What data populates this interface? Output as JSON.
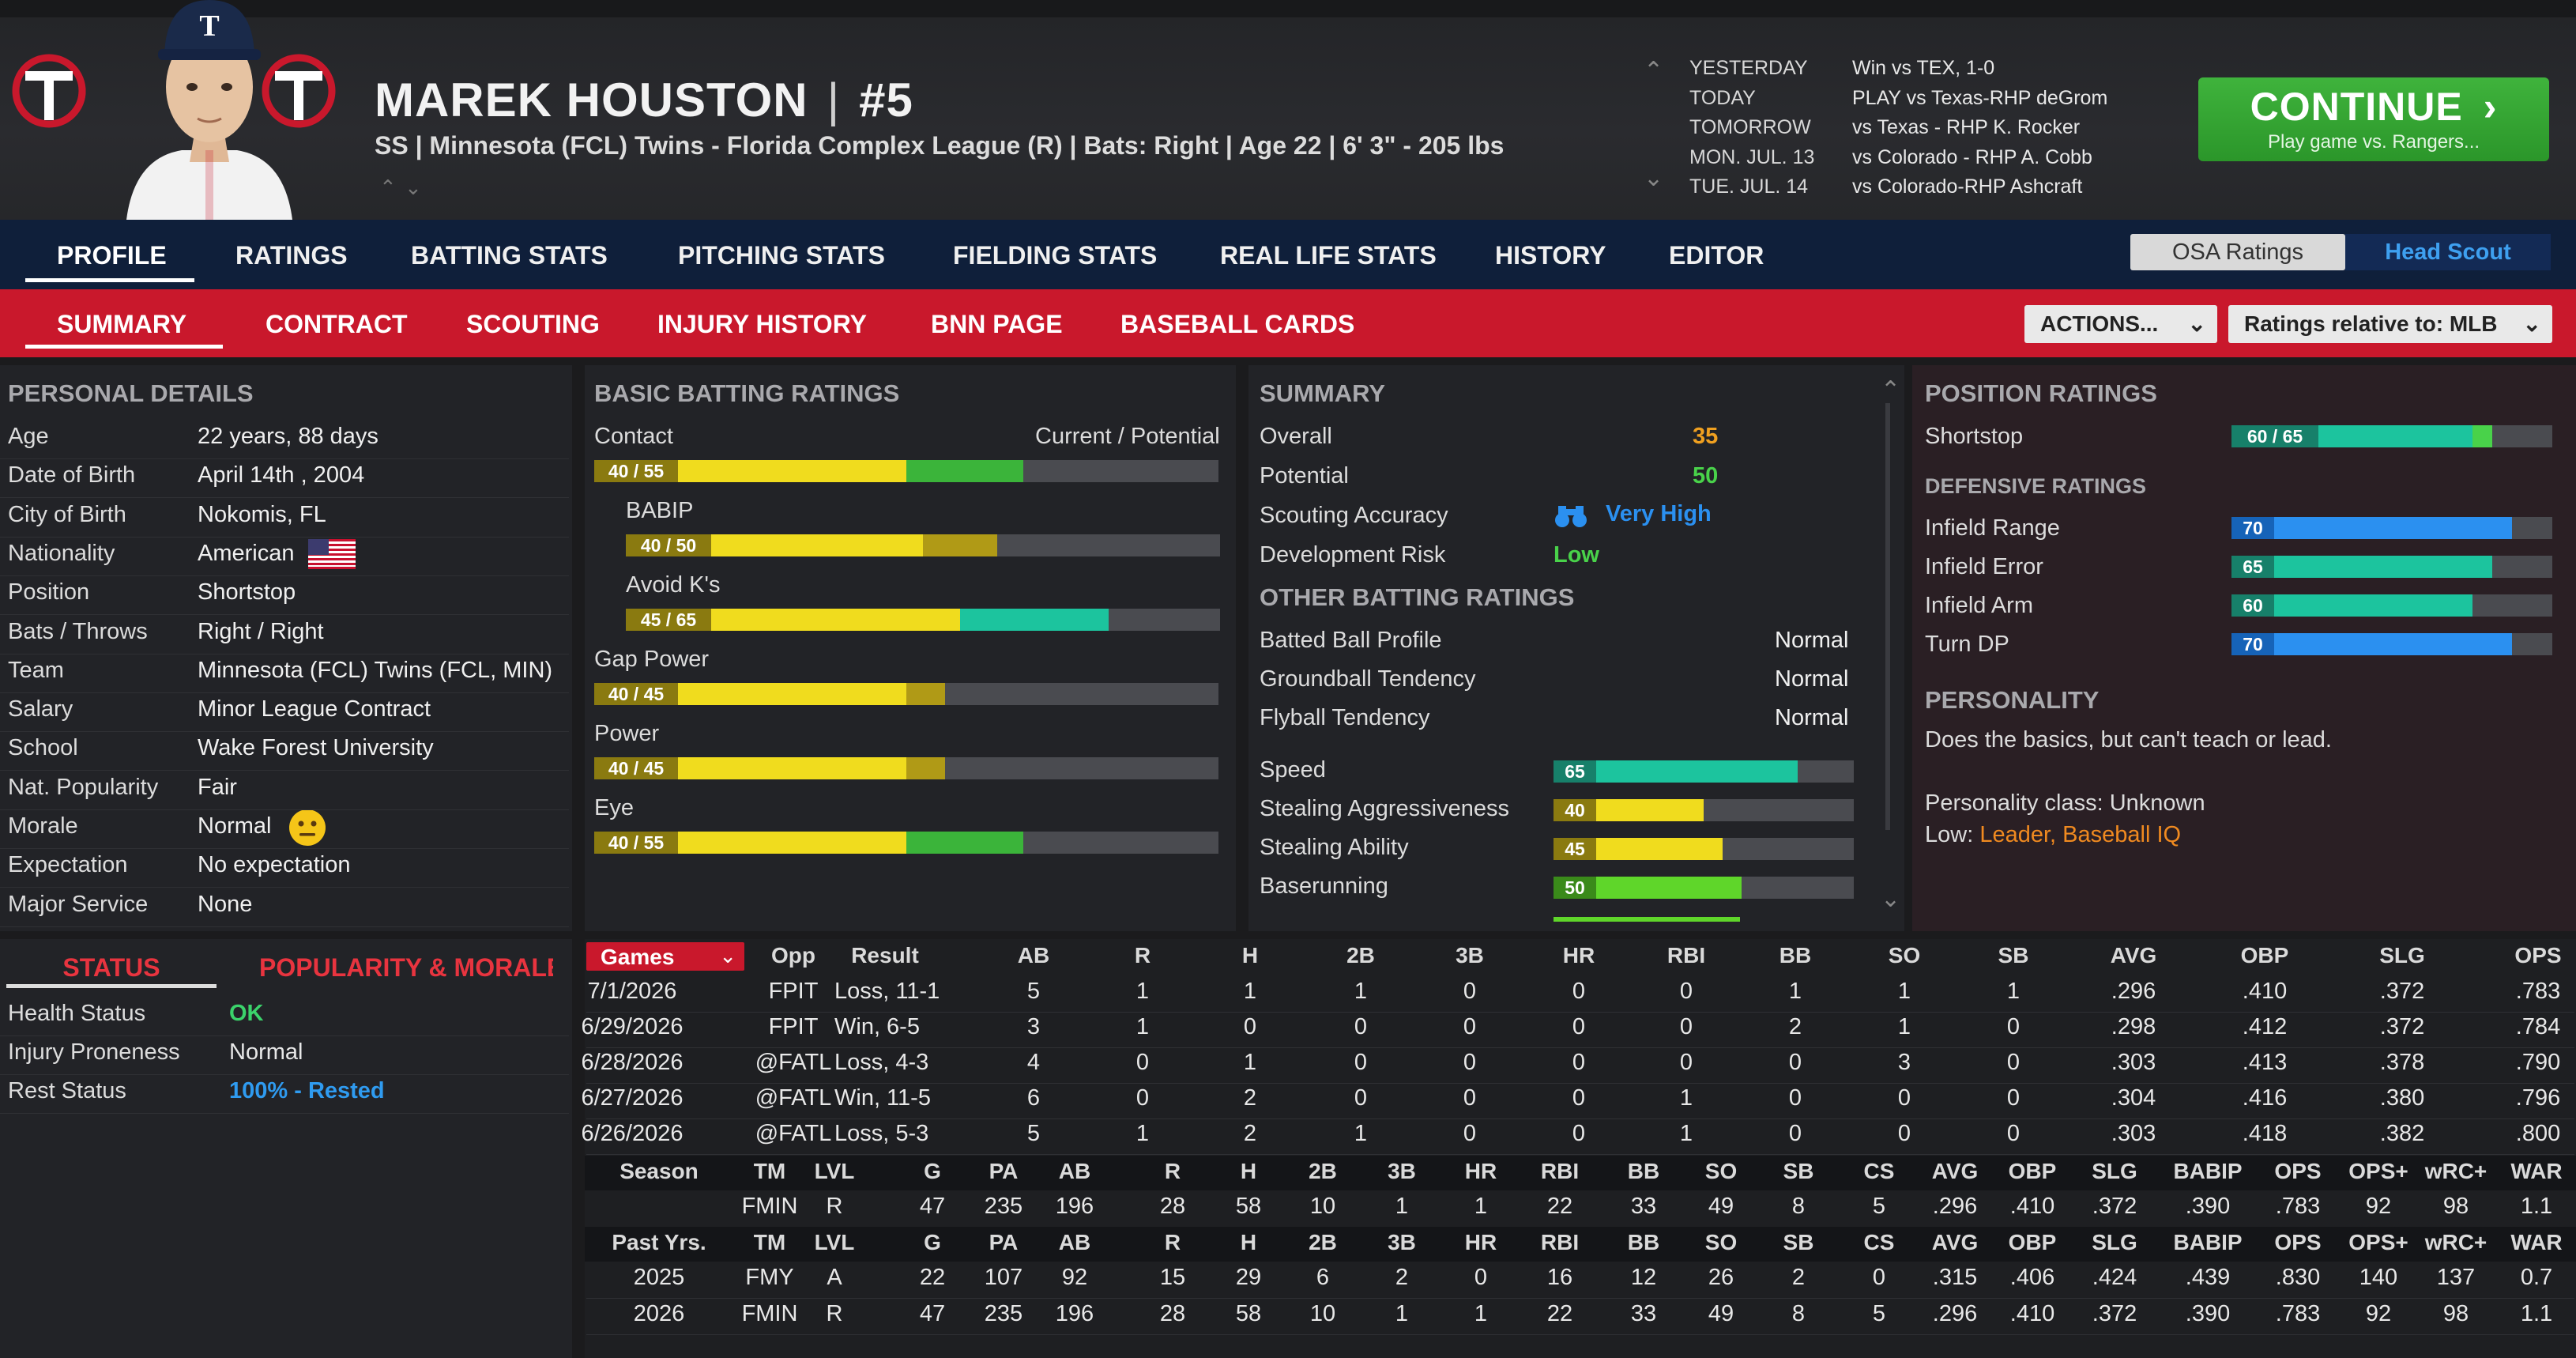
{
  "player": {
    "name": "MAREK HOUSTON",
    "number": "#5",
    "info": "SS | Minnesota (FCL) Twins - Florida Complex League (R)  |  Bats: Right  |  Age 22  |  6' 3\" - 205 lbs",
    "logo_letters": "TC"
  },
  "schedule": [
    {
      "day": "YESTERDAY",
      "event": "Win vs TEX, 1-0"
    },
    {
      "day": "TODAY",
      "event": "PLAY vs Texas-RHP deGrom"
    },
    {
      "day": "TOMORROW",
      "event": "vs Texas - RHP K. Rocker"
    },
    {
      "day": "MON. JUL. 13",
      "event": "vs Colorado - RHP A. Cobb"
    },
    {
      "day": "TUE. JUL. 14",
      "event": "vs Colorado-RHP Ashcraft"
    }
  ],
  "continue": {
    "label": "CONTINUE",
    "sub": "Play game vs. Rangers..."
  },
  "tabs_main": [
    "PROFILE",
    "RATINGS",
    "BATTING STATS",
    "PITCHING STATS",
    "FIELDING STATS",
    "REAL LIFE STATS",
    "HISTORY",
    "EDITOR"
  ],
  "tabs_sub": [
    "SUMMARY",
    "CONTRACT",
    "SCOUTING",
    "INJURY HISTORY",
    "BNN PAGE",
    "BASEBALL CARDS"
  ],
  "toggle": {
    "osa": "OSA Ratings",
    "head": "Head Scout"
  },
  "actions": {
    "label": "ACTIONS...",
    "ratings_relative": "Ratings relative to: MLB"
  },
  "personal": {
    "title": "PERSONAL DETAILS",
    "rows": [
      {
        "label": "Age",
        "value": "22 years, 88 days"
      },
      {
        "label": "Date of Birth",
        "value": "April 14th , 2004"
      },
      {
        "label": "City of Birth",
        "value": "Nokomis, FL"
      },
      {
        "label": "Nationality",
        "value": "American"
      },
      {
        "label": "Position",
        "value": "Shortstop"
      },
      {
        "label": "Bats / Throws",
        "value": "Right / Right"
      },
      {
        "label": "Team",
        "value": "Minnesota (FCL) Twins (FCL, MIN)"
      },
      {
        "label": "Salary",
        "value": "Minor League Contract"
      },
      {
        "label": "School",
        "value": "Wake Forest University"
      },
      {
        "label": "Nat. Popularity",
        "value": "Fair"
      },
      {
        "label": "Morale",
        "value": "Normal"
      },
      {
        "label": "Expectation",
        "value": "No expectation"
      },
      {
        "label": "Major Service",
        "value": "None"
      }
    ]
  },
  "status": {
    "tab_status": "STATUS",
    "tab_pop": "POPULARITY & MORALE",
    "rows": [
      {
        "label": "Health Status",
        "value": "OK",
        "color": "#3bd36b"
      },
      {
        "label": "Injury Proneness",
        "value": "Normal",
        "color": "#e8e8e8"
      },
      {
        "label": "Rest Status",
        "value": "100% - Rested",
        "color": "#2f9bf0"
      }
    ]
  },
  "batting": {
    "title": "BASIC BATTING RATINGS",
    "header_right": "Current / Potential",
    "rows": [
      {
        "label": "Contact",
        "cur": 40,
        "pot": 55,
        "indent": false
      },
      {
        "label": "BABIP",
        "cur": 40,
        "pot": 50,
        "indent": true
      },
      {
        "label": "Avoid K's",
        "cur": 45,
        "pot": 65,
        "indent": true
      },
      {
        "label": "Gap Power",
        "cur": 40,
        "pot": 45,
        "indent": false
      },
      {
        "label": "Power",
        "cur": 40,
        "pot": 45,
        "indent": false
      },
      {
        "label": "Eye",
        "cur": 40,
        "pot": 55,
        "indent": false
      }
    ]
  },
  "summary": {
    "title": "SUMMARY",
    "overall_label": "Overall",
    "overall": "35",
    "potential_label": "Potential",
    "potential": "50",
    "scouting_label": "Scouting Accuracy",
    "scouting": "Very High",
    "risk_label": "Development Risk",
    "risk": "Low",
    "other_title": "OTHER BATTING RATINGS",
    "other": [
      {
        "label": "Batted Ball Profile",
        "value": "Normal"
      },
      {
        "label": "Groundball Tendency",
        "value": "Normal"
      },
      {
        "label": "Flyball Tendency",
        "value": "Normal"
      }
    ],
    "speed": [
      {
        "label": "Speed",
        "value": 65
      },
      {
        "label": "Stealing Aggressiveness",
        "value": 40
      },
      {
        "label": "Stealing Ability",
        "value": 45
      },
      {
        "label": "Baserunning",
        "value": 50
      }
    ]
  },
  "position": {
    "title": "POSITION RATINGS",
    "label": "Shortstop",
    "cur": 60,
    "pot": 65,
    "def_title": "DEFENSIVE RATINGS",
    "def": [
      {
        "label": "Infield Range",
        "value": 70
      },
      {
        "label": "Infield Error",
        "value": 65
      },
      {
        "label": "Infield Arm",
        "value": 60
      },
      {
        "label": "Turn DP",
        "value": 70
      }
    ],
    "personality_title": "PERSONALITY",
    "personality_text": "Does the basics, but can't teach or lead.",
    "personality_class": "Personality class: Unknown",
    "low_label": "Low:",
    "low_value": "Leader, Baseball IQ"
  },
  "games": {
    "select": "Games",
    "headers": [
      "Opp",
      "Result",
      "AB",
      "R",
      "H",
      "2B",
      "3B",
      "HR",
      "RBI",
      "BB",
      "SO",
      "SB",
      "AVG",
      "OBP",
      "SLG",
      "OPS"
    ],
    "rows": [
      [
        "7/1/2026",
        "FPIT",
        "Loss, 11-1",
        "5",
        "1",
        "1",
        "1",
        "0",
        "0",
        "0",
        "1",
        "1",
        "1",
        ".296",
        ".410",
        ".372",
        ".783"
      ],
      [
        "6/29/2026",
        "FPIT",
        "Win, 6-5",
        "3",
        "1",
        "0",
        "0",
        "0",
        "0",
        "0",
        "2",
        "1",
        "0",
        ".298",
        ".412",
        ".372",
        ".784"
      ],
      [
        "6/28/2026",
        "@FATL",
        "Loss, 4-3",
        "4",
        "0",
        "1",
        "0",
        "0",
        "0",
        "0",
        "0",
        "3",
        "0",
        ".303",
        ".413",
        ".378",
        ".790"
      ],
      [
        "6/27/2026",
        "@FATL",
        "Win, 11-5",
        "6",
        "0",
        "2",
        "0",
        "0",
        "0",
        "1",
        "0",
        "0",
        "0",
        ".304",
        ".416",
        ".380",
        ".796"
      ],
      [
        "6/26/2026",
        "@FATL",
        "Loss, 5-3",
        "5",
        "1",
        "2",
        "1",
        "0",
        "0",
        "1",
        "0",
        "0",
        "0",
        ".303",
        ".418",
        ".382",
        ".800"
      ]
    ]
  },
  "season": {
    "headers": [
      "Season",
      "TM",
      "LVL",
      "G",
      "PA",
      "AB",
      "R",
      "H",
      "2B",
      "3B",
      "HR",
      "RBI",
      "BB",
      "SO",
      "SB",
      "CS",
      "AVG",
      "OBP",
      "SLG",
      "BABIP",
      "OPS",
      "OPS+",
      "wRC+",
      "WAR"
    ],
    "rows": [
      [
        "",
        "FMIN",
        "R",
        "47",
        "235",
        "196",
        "28",
        "58",
        "10",
        "1",
        "1",
        "22",
        "33",
        "49",
        "8",
        "5",
        ".296",
        ".410",
        ".372",
        ".390",
        ".783",
        "92",
        "98",
        "1.1"
      ]
    ]
  },
  "past": {
    "headers": [
      "Past Yrs.",
      "TM",
      "LVL",
      "G",
      "PA",
      "AB",
      "R",
      "H",
      "2B",
      "3B",
      "HR",
      "RBI",
      "BB",
      "SO",
      "SB",
      "CS",
      "AVG",
      "OBP",
      "SLG",
      "BABIP",
      "OPS",
      "OPS+",
      "wRC+",
      "WAR"
    ],
    "rows": [
      [
        "2025",
        "FMY",
        "A",
        "22",
        "107",
        "92",
        "15",
        "29",
        "6",
        "2",
        "0",
        "16",
        "12",
        "26",
        "2",
        "0",
        ".315",
        ".406",
        ".424",
        ".439",
        ".830",
        "140",
        "137",
        "0.7"
      ],
      [
        "2026",
        "FMIN",
        "R",
        "47",
        "235",
        "196",
        "28",
        "58",
        "10",
        "1",
        "1",
        "22",
        "33",
        "49",
        "8",
        "5",
        ".296",
        ".410",
        ".372",
        ".390",
        ".783",
        "92",
        "98",
        "1.1"
      ]
    ]
  },
  "colors": {
    "accent_red": "#c9182c",
    "navy": "#0f1f3a",
    "yellow": "#f0dc1e",
    "green": "#3bb43a",
    "teal": "#1cc49e",
    "blue": "#2b90f0",
    "orange": "#f0a020",
    "gold": "#b09a16"
  }
}
